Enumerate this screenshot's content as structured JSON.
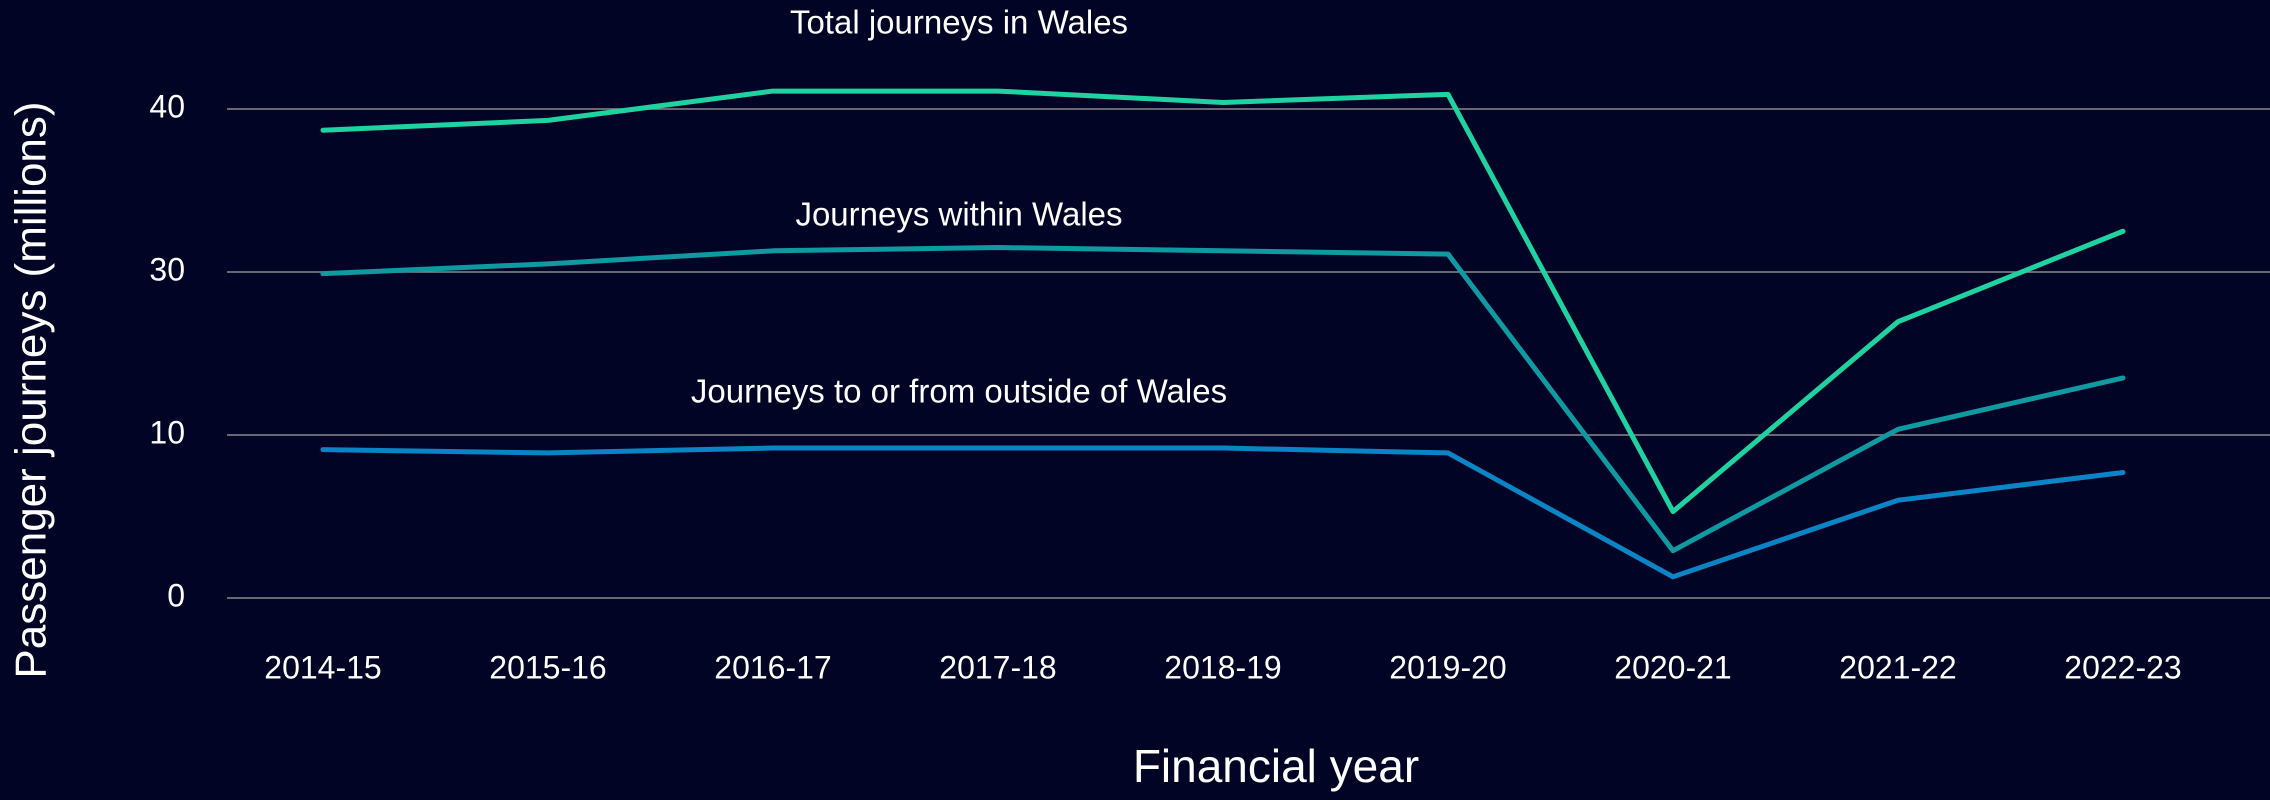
{
  "chart_data": {
    "type": "line",
    "x_label": "Financial year",
    "y_label": "Passenger journeys (millions)",
    "annotations": [
      "Total journeys in Wales",
      "Journeys within Wales",
      "Journeys to or from outside of Wales"
    ],
    "categories": [
      "2014-15",
      "2015-16",
      "2016-17",
      "2017-18",
      "2018-19",
      "2019-20",
      "2020-21",
      "2021-22",
      "2022-23"
    ],
    "series": [
      {
        "name": "Total journeys in Wales",
        "color": "#1fd3a0",
        "values": [
          38.7,
          39.3,
          41.1,
          41.1,
          40.4,
          40.9,
          5.3,
          23.9,
          32.5
        ]
      },
      {
        "name": "Journeys within Wales",
        "color": "#0e9aa0",
        "values": [
          29.8,
          30.5,
          31.3,
          31.5,
          31.3,
          31.1,
          2.9,
          10.7,
          17.0
        ]
      },
      {
        "name": "Journeys to or from outside of Wales",
        "color": "#0a84c4",
        "values": [
          9.1,
          8.9,
          9.2,
          9.2,
          9.2,
          8.9,
          1.3,
          6.0,
          7.7
        ]
      }
    ],
    "ylim": [
      0,
      40
    ],
    "yticks": [
      0,
      10,
      30,
      40
    ],
    "grid": true
  }
}
